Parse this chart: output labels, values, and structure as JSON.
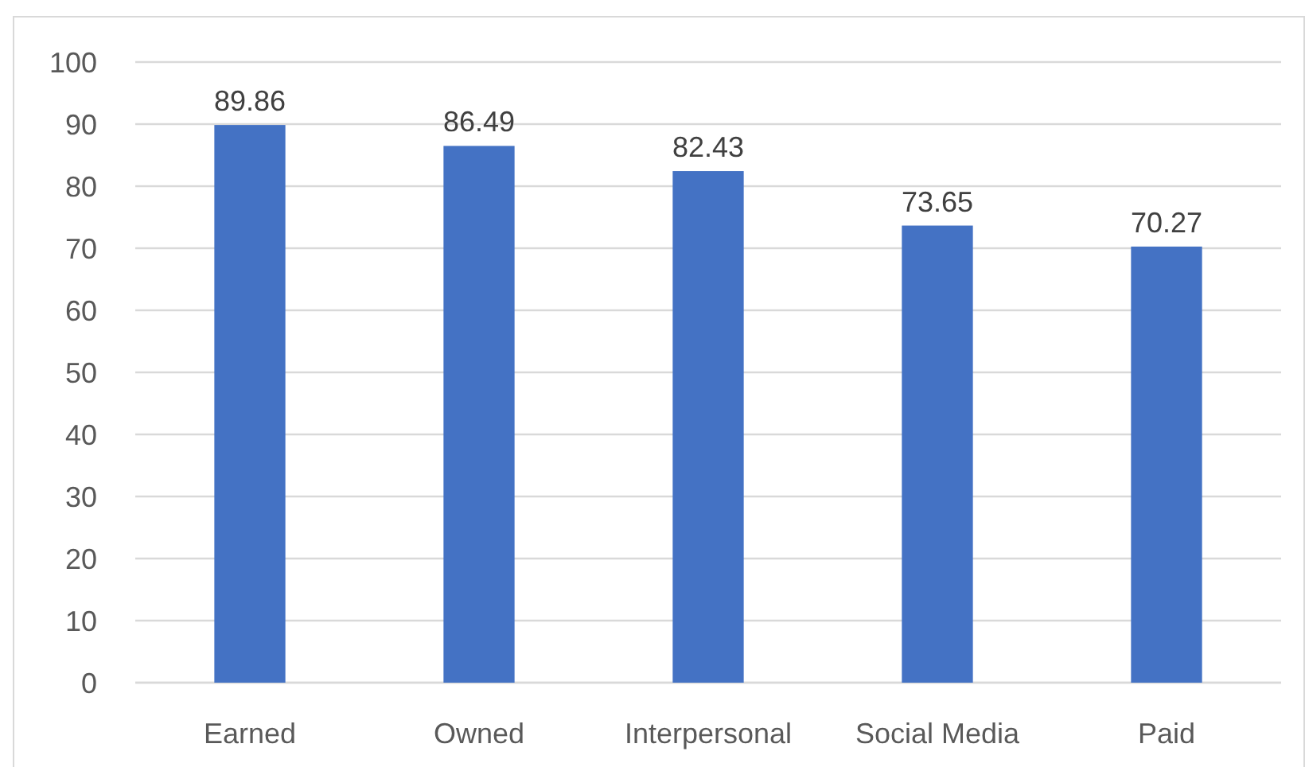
{
  "chart_data": {
    "type": "bar",
    "categories": [
      "Earned",
      "Owned",
      "Interpersonal",
      "Social Media",
      "Paid"
    ],
    "values": [
      89.86,
      86.49,
      82.43,
      73.65,
      70.27
    ],
    "color": "#4472c4",
    "ylim": [
      0,
      100
    ],
    "yticks": [
      0,
      10,
      20,
      30,
      40,
      50,
      60,
      70,
      80,
      90,
      100
    ],
    "grid": "y",
    "data_labels": true
  }
}
